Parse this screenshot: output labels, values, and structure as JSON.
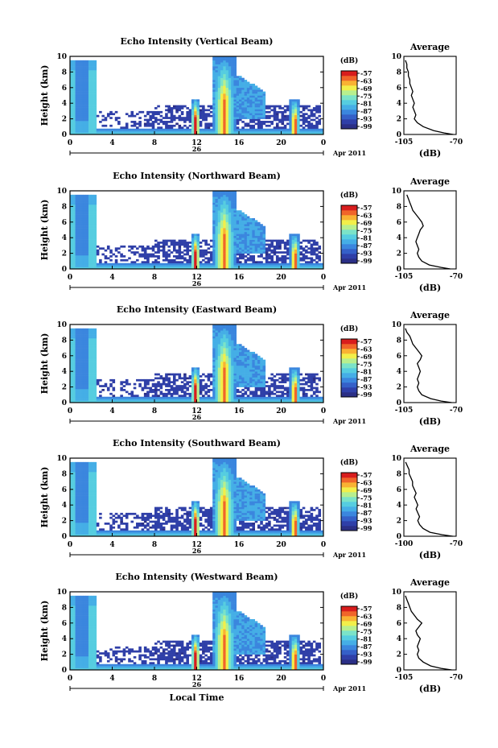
{
  "chart_data": [
    {
      "type": "heatmap",
      "title": "Echo Intensity (Vertical Beam)",
      "ylabel": "Height (km)",
      "xticks": [
        "0",
        "4",
        "8",
        "12",
        "16",
        "20",
        "0"
      ],
      "yticks": [
        "0",
        "2",
        "4",
        "6",
        "8",
        "10"
      ],
      "xlim": [
        0,
        24
      ],
      "ylim": [
        0,
        10
      ],
      "day_label": "26",
      "month_label": "Apr 2011",
      "colorbar": {
        "unit": "(dB)",
        "ticks": [
          "-57",
          "-63",
          "-69",
          "-75",
          "-81",
          "-87",
          "-93",
          "-99"
        ]
      },
      "profile": {
        "title": "Average",
        "xlabel": "(dB)",
        "xticks": [
          "-105",
          "-70"
        ],
        "yticks": [
          "0",
          "2",
          "4",
          "6",
          "8",
          "10"
        ],
        "xlim": [
          -105,
          -70
        ],
        "ylim": [
          0,
          10
        ],
        "x": [
          -72,
          -78,
          -85,
          -92,
          -96,
          -98,
          -97,
          -98,
          -99,
          -98,
          -99,
          -100,
          -99,
          -100,
          -101,
          -101,
          -102,
          -102,
          -103,
          -103,
          -104
        ],
        "y": [
          0,
          0.2,
          0.5,
          1,
          1.5,
          2,
          2.5,
          3,
          3.5,
          4,
          4.5,
          5,
          5.5,
          6,
          6.5,
          7,
          7.5,
          8,
          8.5,
          9,
          9.5
        ]
      }
    },
    {
      "type": "heatmap",
      "title": "Echo Intensity (Northward Beam)",
      "ylabel": "Height (km)",
      "xticks": [
        "0",
        "4",
        "8",
        "12",
        "16",
        "20",
        "0"
      ],
      "yticks": [
        "0",
        "2",
        "4",
        "6",
        "8",
        "10"
      ],
      "xlim": [
        0,
        24
      ],
      "ylim": [
        0,
        10
      ],
      "day_label": "26",
      "month_label": "Apr 2011",
      "colorbar": {
        "unit": "(dB)",
        "ticks": [
          "-57",
          "-63",
          "-69",
          "-75",
          "-81",
          "-87",
          "-93",
          "-99"
        ]
      },
      "profile": {
        "title": "Average",
        "xlabel": "(dB)",
        "xticks": [
          "-105",
          "-70"
        ],
        "yticks": [
          "0",
          "2",
          "4",
          "6",
          "8",
          "10"
        ],
        "xlim": [
          -105,
          -70
        ],
        "ylim": [
          0,
          10
        ],
        "x": [
          -74,
          -80,
          -88,
          -93,
          -95,
          -96,
          -95,
          -96,
          -97,
          -96,
          -95,
          -94,
          -92,
          -93,
          -95,
          -97,
          -99,
          -100,
          -101,
          -102,
          -103
        ],
        "y": [
          0,
          0.2,
          0.5,
          1,
          1.5,
          2,
          2.5,
          3,
          3.5,
          4,
          4.5,
          5,
          5.5,
          6,
          6.5,
          7,
          7.5,
          8,
          8.5,
          9,
          9.5
        ]
      }
    },
    {
      "type": "heatmap",
      "title": "Echo Intensity (Eastward Beam)",
      "ylabel": "Height (km)",
      "xticks": [
        "0",
        "4",
        "8",
        "12",
        "16",
        "20",
        "0"
      ],
      "yticks": [
        "0",
        "2",
        "4",
        "6",
        "8",
        "10"
      ],
      "xlim": [
        0,
        24
      ],
      "ylim": [
        0,
        10
      ],
      "day_label": "26",
      "month_label": "Apr 2011",
      "colorbar": {
        "unit": "(dB)",
        "ticks": [
          "-57",
          "-63",
          "-69",
          "-75",
          "-81",
          "-87",
          "-93",
          "-99"
        ]
      },
      "profile": {
        "title": "Average",
        "xlabel": "(dB)",
        "xticks": [
          "-105",
          "-70"
        ],
        "yticks": [
          "0",
          "2",
          "4",
          "6",
          "8",
          "10"
        ],
        "xlim": [
          -105,
          -70
        ],
        "ylim": [
          0,
          10
        ],
        "x": [
          -73,
          -80,
          -87,
          -93,
          -95,
          -96,
          -95,
          -96,
          -95,
          -94,
          -95,
          -96,
          -94,
          -93,
          -95,
          -97,
          -99,
          -100,
          -101,
          -103,
          -104
        ],
        "y": [
          0,
          0.2,
          0.5,
          1,
          1.5,
          2,
          2.5,
          3,
          3.5,
          4,
          4.5,
          5,
          5.5,
          6,
          6.5,
          7,
          7.5,
          8,
          8.5,
          9,
          9.5
        ]
      }
    },
    {
      "type": "heatmap",
      "title": "Echo Intensity (Southward Beam)",
      "ylabel": "Height (km)",
      "xticks": [
        "0",
        "4",
        "8",
        "12",
        "16",
        "20",
        "0"
      ],
      "yticks": [
        "0",
        "2",
        "4",
        "6",
        "8",
        "10"
      ],
      "xlim": [
        0,
        24
      ],
      "ylim": [
        0,
        10
      ],
      "day_label": "26",
      "month_label": "Apr 2011",
      "colorbar": {
        "unit": "(dB)",
        "ticks": [
          "-57",
          "-63",
          "-69",
          "-75",
          "-81",
          "-87",
          "-93",
          "-99"
        ]
      },
      "profile": {
        "title": "Average",
        "xlabel": "(dB)",
        "xticks": [
          "-100",
          "-70"
        ],
        "yticks": [
          "0",
          "2",
          "4",
          "6",
          "8",
          "10"
        ],
        "xlim": [
          -100,
          -70
        ],
        "ylim": [
          0,
          10
        ],
        "x": [
          -72,
          -78,
          -85,
          -89,
          -91,
          -92,
          -91,
          -92,
          -93,
          -92,
          -93,
          -94,
          -93,
          -94,
          -95,
          -95,
          -96,
          -97,
          -97,
          -98,
          -99
        ],
        "y": [
          0,
          0.2,
          0.5,
          1,
          1.5,
          2,
          2.5,
          3,
          3.5,
          4,
          4.5,
          5,
          5.5,
          6,
          6.5,
          7,
          7.5,
          8,
          8.5,
          9,
          9.5
        ]
      }
    },
    {
      "type": "heatmap",
      "title": "Echo Intensity (Westward Beam)",
      "ylabel": "Height (km)",
      "xlabel": "Local Time",
      "xticks": [
        "0",
        "4",
        "8",
        "12",
        "16",
        "20",
        "0"
      ],
      "yticks": [
        "0",
        "2",
        "4",
        "6",
        "8",
        "10"
      ],
      "xlim": [
        0,
        24
      ],
      "ylim": [
        0,
        10
      ],
      "day_label": "26",
      "month_label": "Apr 2011",
      "colorbar": {
        "unit": "(dB)",
        "ticks": [
          "-57",
          "-63",
          "-69",
          "-75",
          "-81",
          "-87",
          "-93",
          "-99"
        ]
      },
      "profile": {
        "title": "Average",
        "xlabel": "(dB)",
        "xticks": [
          "-105",
          "-70"
        ],
        "yticks": [
          "0",
          "2",
          "4",
          "6",
          "8",
          "10"
        ],
        "xlim": [
          -105,
          -70
        ],
        "ylim": [
          0,
          10
        ],
        "x": [
          -73,
          -80,
          -87,
          -92,
          -95,
          -96,
          -95,
          -96,
          -95,
          -94,
          -96,
          -97,
          -95,
          -93,
          -96,
          -98,
          -100,
          -101,
          -102,
          -103,
          -104
        ],
        "y": [
          0,
          0.2,
          0.5,
          1,
          1.5,
          2,
          2.5,
          3,
          3.5,
          4,
          4.5,
          5,
          5.5,
          6,
          6.5,
          7,
          7.5,
          8,
          8.5,
          9,
          9.5
        ]
      }
    }
  ],
  "colors": {
    "colorscale": [
      "#2b2f86",
      "#2f3fa8",
      "#3560c8",
      "#3b86de",
      "#45aee6",
      "#56cde0",
      "#7be3c8",
      "#b8ef8e",
      "#f2ef4a",
      "#f9b233",
      "#f0652a",
      "#d81d1d"
    ],
    "line": "#000000",
    "background": "#ffffff"
  }
}
